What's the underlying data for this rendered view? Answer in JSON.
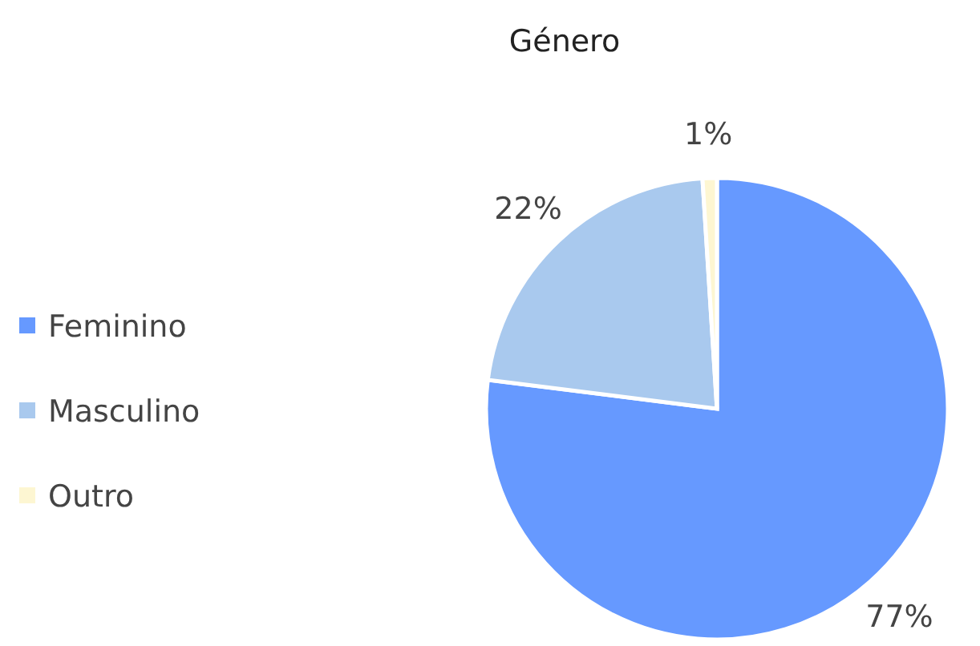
{
  "chart_data": {
    "type": "pie",
    "title": "Género",
    "categories": [
      "Feminino",
      "Masculino",
      "Outro"
    ],
    "values": [
      77,
      22,
      1
    ],
    "colors": [
      "#6699ff",
      "#a9c9ee",
      "#fdf6d2"
    ],
    "value_labels": [
      "77%",
      "22%",
      "1%"
    ],
    "legend": "left"
  }
}
